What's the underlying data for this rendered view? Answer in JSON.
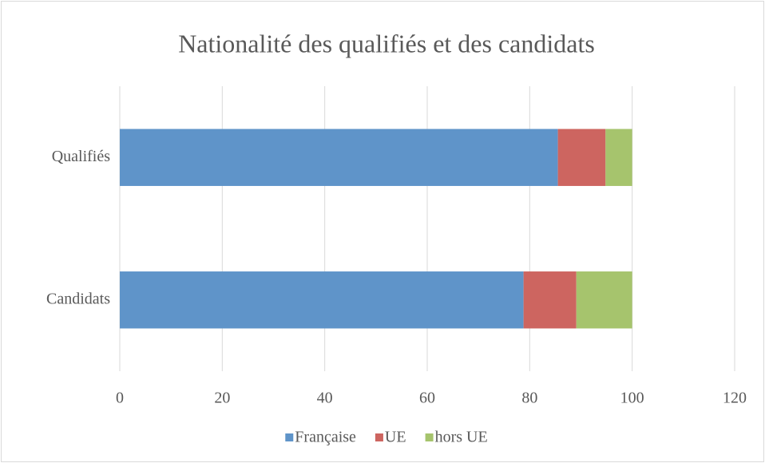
{
  "chart_data": {
    "type": "stacked-bar-horizontal",
    "title": "Nationalité des qualifiés et des candidats",
    "categories": [
      "Qualifiés",
      "Candidats"
    ],
    "series": [
      {
        "name": "Française",
        "color": "#5f94c9",
        "values": [
          85.5,
          78.8
        ]
      },
      {
        "name": "UE",
        "color": "#cd6560",
        "values": [
          9.3,
          10.3
        ]
      },
      {
        "name": "hors UE",
        "color": "#a6c46d",
        "values": [
          5.2,
          10.9
        ]
      }
    ],
    "xlim": [
      0,
      120
    ],
    "xticks": [
      0,
      20,
      40,
      60,
      80,
      100,
      120
    ],
    "grid": true,
    "legend": "bottom"
  }
}
